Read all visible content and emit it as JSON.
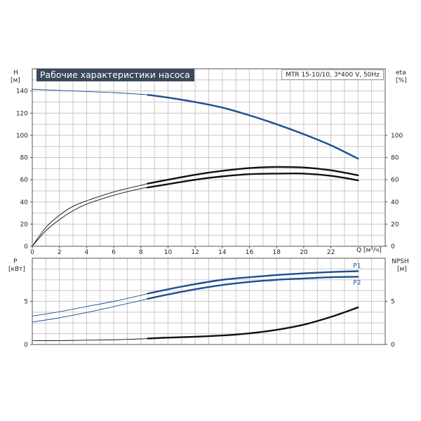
{
  "title": "Рабочие характеристики насоса",
  "model": "MTR 15-10/10, 3*400 V, 50Hz",
  "colors": {
    "grid": "#c8c8c8",
    "frame": "#555555",
    "blue": "#1d4f91",
    "black": "#111111"
  },
  "labels": {
    "h_axis": "H",
    "h_unit": "[м]",
    "eta_axis": "eta",
    "eta_unit": "[%]",
    "p_axis": "P",
    "p_unit": "[кВт]",
    "npsh_axis": "NPSH",
    "npsh_unit": "[м]",
    "q_axis": "Q [м³/ч]"
  },
  "chart_data": [
    {
      "type": "line",
      "title": "Рабочие характеристики насоса",
      "xlabel": "Q [м³/ч]",
      "xlim": [
        0,
        26
      ],
      "x_ticks": [
        0,
        2,
        4,
        6,
        8,
        10,
        12,
        14,
        16,
        18,
        20,
        22
      ],
      "y_left": {
        "label": "H [м]",
        "ylim": [
          0,
          160
        ],
        "ticks": [
          0,
          20,
          40,
          60,
          80,
          100,
          120,
          140
        ]
      },
      "y_right": {
        "label": "eta [%]",
        "ylim": [
          0,
          160
        ],
        "ticks": [
          0,
          20,
          40,
          60,
          80,
          100
        ]
      },
      "grid": true,
      "series": [
        {
          "id": "H",
          "axis": "left",
          "color": "#1d4f91",
          "op_start": 8.5,
          "x": [
            0,
            2,
            4,
            6,
            8,
            8.5,
            10,
            12,
            14,
            16,
            18,
            20,
            22,
            24
          ],
          "y": [
            141.5,
            140.5,
            139.5,
            138.5,
            137,
            136.5,
            134,
            130,
            125,
            118,
            110,
            101,
            91,
            79
          ]
        },
        {
          "id": "eta1",
          "axis": "right",
          "color": "#111111",
          "op_start": 8.5,
          "x": [
            0,
            1,
            2,
            3,
            4,
            6,
            8,
            8.5,
            10,
            12,
            14,
            16,
            18,
            20,
            22,
            24
          ],
          "y": [
            0,
            17,
            28,
            36,
            41,
            49,
            55,
            56.5,
            60,
            64.5,
            68,
            70.5,
            71.5,
            71,
            68.5,
            64
          ]
        },
        {
          "id": "eta2",
          "axis": "right",
          "color": "#111111",
          "op_start": 8.5,
          "x": [
            0,
            1,
            2,
            3,
            4,
            6,
            8,
            8.5,
            10,
            12,
            14,
            16,
            18,
            20,
            22,
            24
          ],
          "y": [
            0,
            14,
            24,
            32,
            38,
            46,
            52,
            53,
            56,
            60,
            63,
            65,
            65.5,
            65.5,
            63.5,
            59.5
          ]
        }
      ]
    },
    {
      "type": "line",
      "xlim": [
        0,
        26
      ],
      "y_left": {
        "label": "P [кВт]",
        "ylim": [
          0,
          10
        ],
        "ticks": [
          0,
          5
        ]
      },
      "y_right": {
        "label": "NPSH [м]",
        "ylim": [
          0,
          10
        ],
        "ticks": [
          0,
          5
        ]
      },
      "grid": true,
      "series": [
        {
          "id": "P1",
          "name": "P1",
          "axis": "left",
          "color": "#1d4f91",
          "op_start": 8.5,
          "x": [
            0,
            2,
            4,
            6,
            8,
            8.5,
            10,
            12,
            14,
            16,
            18,
            20,
            22,
            24
          ],
          "y": [
            3.3,
            3.8,
            4.4,
            5.0,
            5.7,
            5.9,
            6.4,
            7.0,
            7.5,
            7.8,
            8.05,
            8.25,
            8.4,
            8.5
          ]
        },
        {
          "id": "P2",
          "name": "P2",
          "axis": "left",
          "color": "#1d4f91",
          "op_start": 8.5,
          "x": [
            0,
            2,
            4,
            6,
            8,
            8.5,
            10,
            12,
            14,
            16,
            18,
            20,
            22,
            24
          ],
          "y": [
            2.6,
            3.1,
            3.7,
            4.4,
            5.1,
            5.3,
            5.8,
            6.4,
            6.9,
            7.25,
            7.5,
            7.65,
            7.8,
            7.85
          ]
        },
        {
          "id": "NPSH",
          "axis": "right",
          "color": "#111111",
          "op_start": 8.5,
          "x": [
            0,
            2,
            4,
            6,
            8,
            8.5,
            10,
            12,
            14,
            16,
            18,
            20,
            22,
            24
          ],
          "y": [
            0.45,
            0.45,
            0.5,
            0.55,
            0.65,
            0.7,
            0.8,
            0.9,
            1.05,
            1.3,
            1.7,
            2.3,
            3.2,
            4.3
          ]
        }
      ]
    }
  ]
}
